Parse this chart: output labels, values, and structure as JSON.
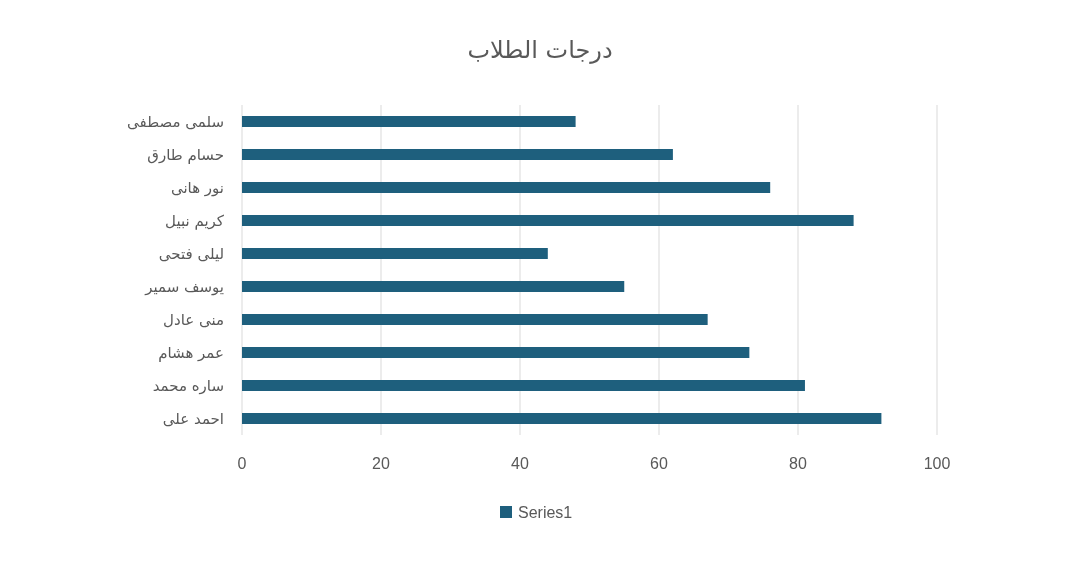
{
  "chart_data": {
    "type": "bar",
    "orientation": "horizontal",
    "title": "درجات الطلاب",
    "categories": [
      "سلمى مصطفى",
      "حسام طارق",
      "نور هانى",
      "كريم نبيل",
      "ليلى فتحى",
      "يوسف سمير",
      "منى عادل",
      "عمر هشام",
      "ساره محمد",
      "احمد على"
    ],
    "series": [
      {
        "name": "Series1",
        "color": "#1e5f7d",
        "values": [
          48,
          62,
          76,
          88,
          44,
          55,
          67,
          73,
          81,
          92
        ]
      }
    ],
    "xlim": [
      0,
      100
    ],
    "xticks": [
      0,
      20,
      40,
      60,
      80,
      100
    ],
    "grid": "x",
    "legend": "bottom"
  }
}
